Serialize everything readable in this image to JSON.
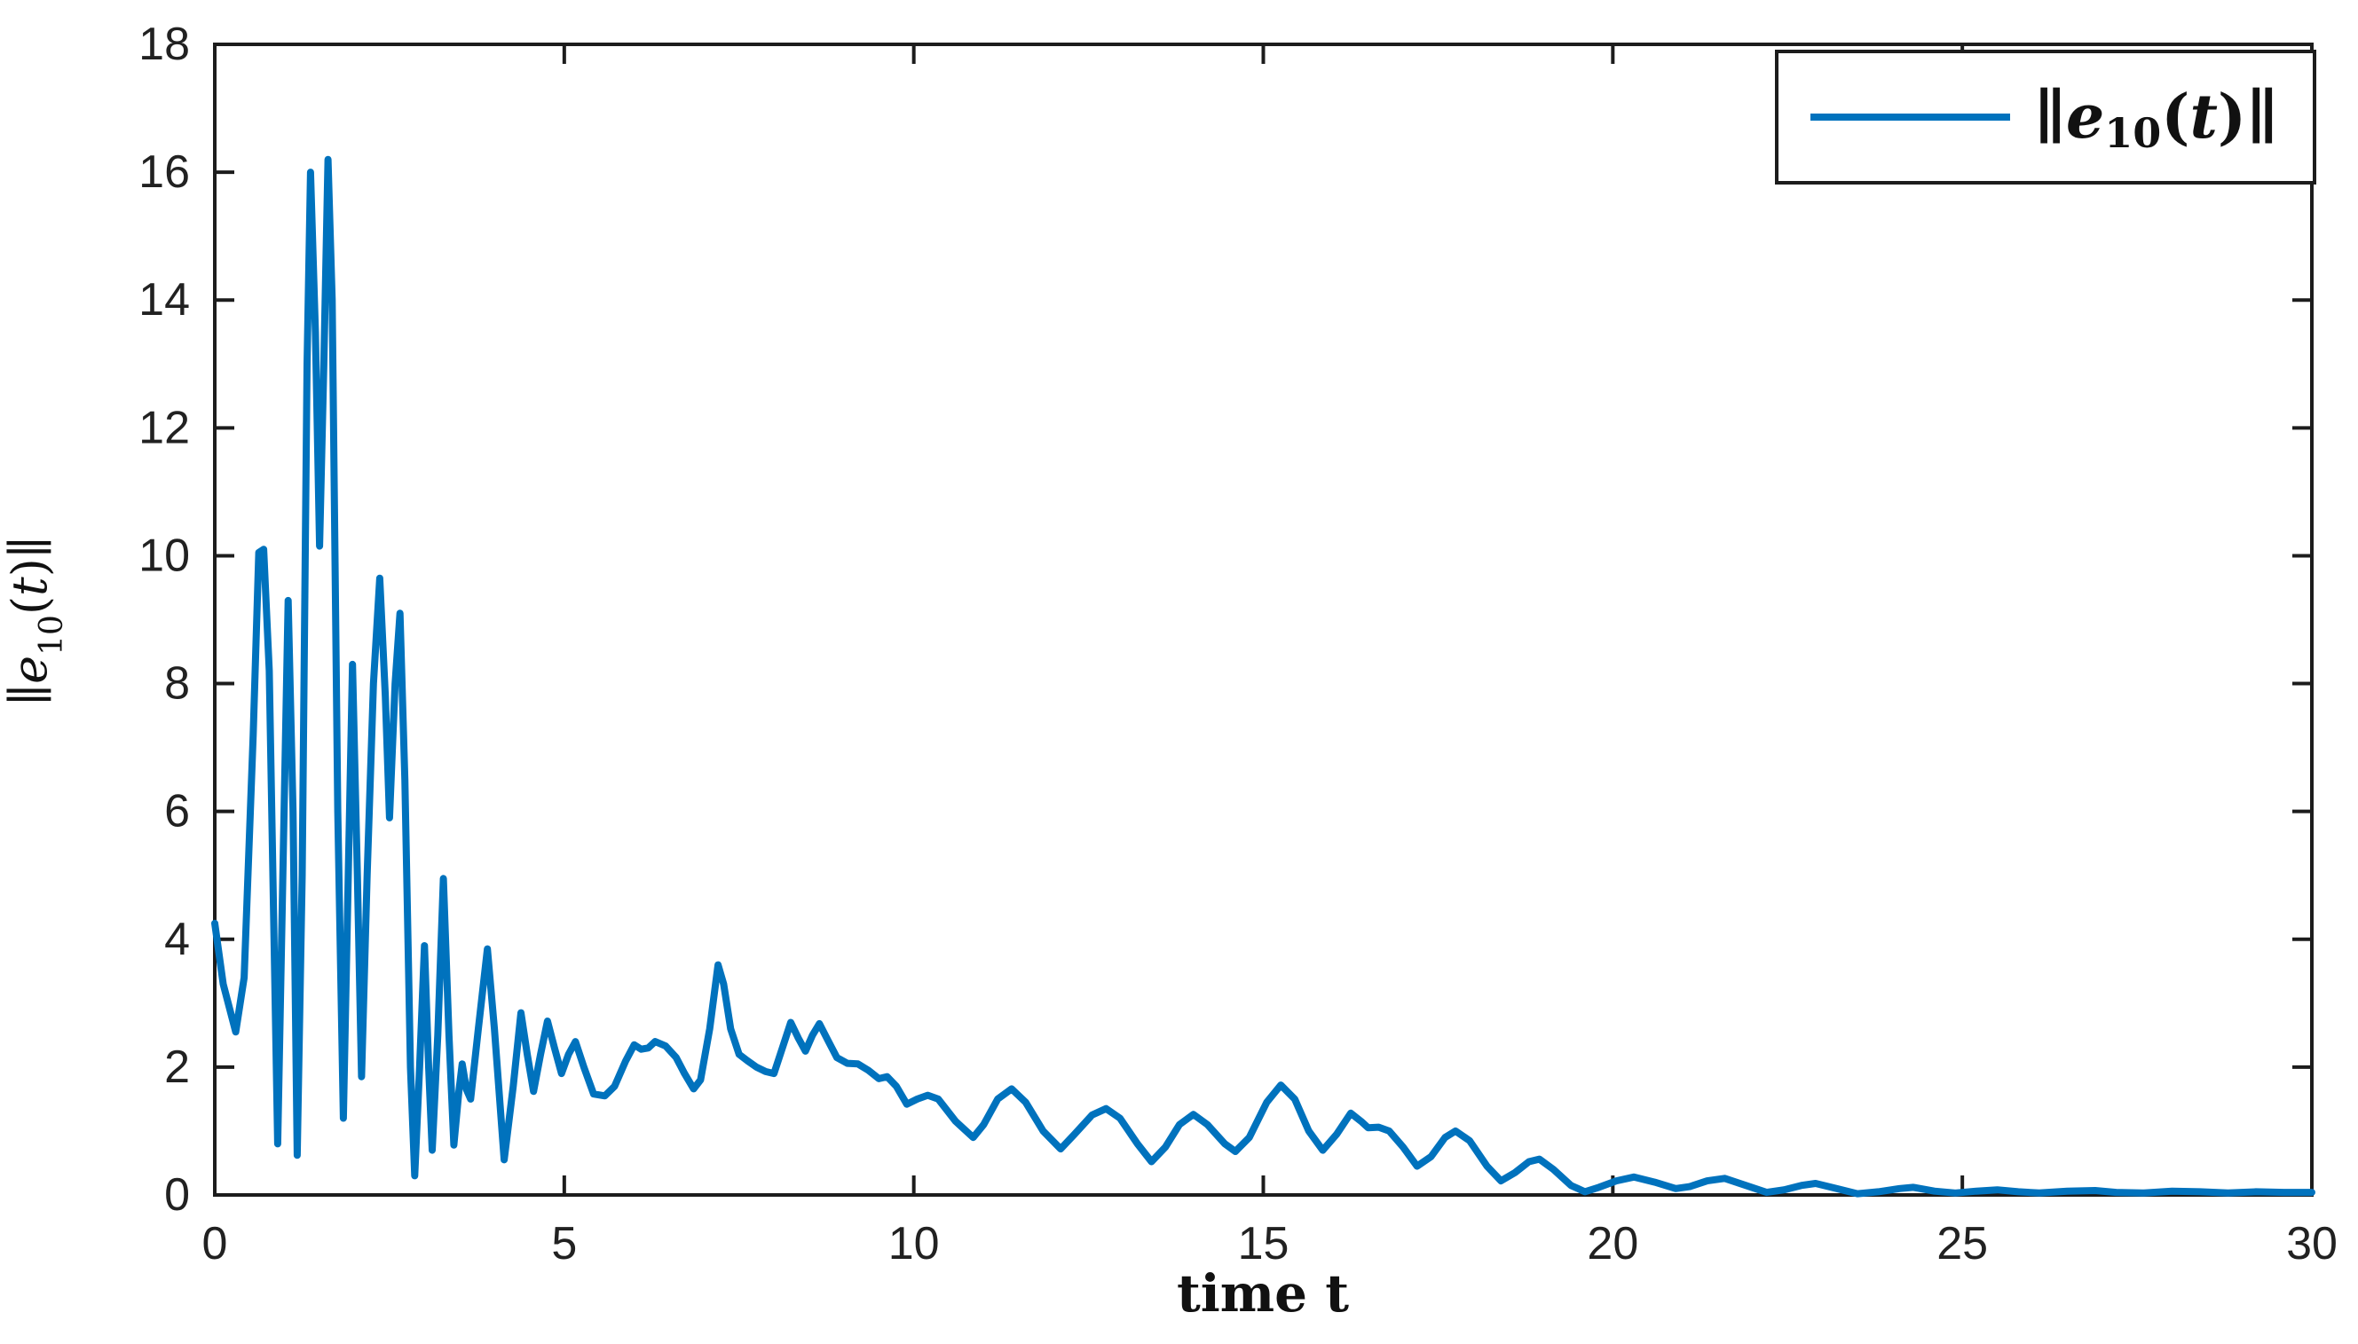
{
  "figure": {
    "background": "#ffffff"
  },
  "chart_data": {
    "type": "line",
    "title": "",
    "xlabel": "time t",
    "ylabel": "||e10(t)||",
    "ylabel_parts": {
      "open": "∥",
      "var": "e",
      "sub": "10",
      "arg_open": "(",
      "arg_var": "t",
      "arg_close": ")",
      "close": "∥"
    },
    "xlim": [
      0,
      30
    ],
    "ylim": [
      0,
      18
    ],
    "xticks": [
      0,
      5,
      10,
      15,
      20,
      25,
      30
    ],
    "yticks": [
      0,
      2,
      4,
      6,
      8,
      10,
      12,
      14,
      16,
      18
    ],
    "grid": false,
    "legend": {
      "position": "top-right",
      "entries": [
        {
          "label": "||e10(t)||",
          "label_parts": {
            "open": "∥",
            "var": "e",
            "sub": "10",
            "arg_open": "(",
            "arg_var": "t",
            "arg_close": ")",
            "close": "∥"
          },
          "color": "#0072BD"
        }
      ]
    },
    "axis_color": "#1c1c1c",
    "line_color": "#0072BD",
    "line_width": 8,
    "series": [
      {
        "name": "||e10(t)||",
        "points": [
          [
            0,
            4.25
          ],
          [
            0.12,
            3.3
          ],
          [
            0.3,
            2.55
          ],
          [
            0.42,
            3.4
          ],
          [
            0.55,
            7.2
          ],
          [
            0.63,
            10.05
          ],
          [
            0.7,
            10.1
          ],
          [
            0.78,
            8.2
          ],
          [
            0.9,
            0.8
          ],
          [
            1.0,
            6.5
          ],
          [
            1.05,
            9.3
          ],
          [
            1.12,
            6.0
          ],
          [
            1.18,
            0.62
          ],
          [
            1.25,
            5.0
          ],
          [
            1.32,
            13.0
          ],
          [
            1.37,
            16.0
          ],
          [
            1.44,
            13.5
          ],
          [
            1.5,
            10.15
          ],
          [
            1.56,
            13.0
          ],
          [
            1.62,
            16.2
          ],
          [
            1.68,
            14.0
          ],
          [
            1.76,
            6.0
          ],
          [
            1.84,
            1.2
          ],
          [
            1.9,
            4.5
          ],
          [
            1.97,
            8.3
          ],
          [
            2.04,
            5.0
          ],
          [
            2.1,
            1.85
          ],
          [
            2.18,
            5.0
          ],
          [
            2.27,
            8.0
          ],
          [
            2.36,
            9.65
          ],
          [
            2.44,
            7.8
          ],
          [
            2.5,
            5.9
          ],
          [
            2.58,
            8.0
          ],
          [
            2.65,
            9.1
          ],
          [
            2.72,
            6.5
          ],
          [
            2.8,
            2.0
          ],
          [
            2.86,
            0.3
          ],
          [
            2.93,
            2.0
          ],
          [
            3.0,
            3.9
          ],
          [
            3.06,
            2.0
          ],
          [
            3.11,
            0.7
          ],
          [
            3.19,
            2.5
          ],
          [
            3.27,
            4.95
          ],
          [
            3.35,
            2.5
          ],
          [
            3.42,
            0.78
          ],
          [
            3.49,
            1.6
          ],
          [
            3.54,
            2.05
          ],
          [
            3.6,
            1.65
          ],
          [
            3.66,
            1.5
          ],
          [
            3.77,
            2.6
          ],
          [
            3.9,
            3.85
          ],
          [
            4.0,
            2.6
          ],
          [
            4.14,
            0.55
          ],
          [
            4.27,
            1.7
          ],
          [
            4.38,
            2.85
          ],
          [
            4.47,
            2.2
          ],
          [
            4.56,
            1.62
          ],
          [
            4.66,
            2.2
          ],
          [
            4.76,
            2.72
          ],
          [
            4.86,
            2.3
          ],
          [
            4.96,
            1.9
          ],
          [
            5.06,
            2.2
          ],
          [
            5.16,
            2.4
          ],
          [
            5.28,
            2.0
          ],
          [
            5.42,
            1.58
          ],
          [
            5.58,
            1.55
          ],
          [
            5.72,
            1.7
          ],
          [
            5.88,
            2.1
          ],
          [
            6.0,
            2.35
          ],
          [
            6.1,
            2.28
          ],
          [
            6.2,
            2.3
          ],
          [
            6.3,
            2.4
          ],
          [
            6.45,
            2.33
          ],
          [
            6.6,
            2.15
          ],
          [
            6.72,
            1.9
          ],
          [
            6.85,
            1.66
          ],
          [
            6.95,
            1.8
          ],
          [
            7.08,
            2.6
          ],
          [
            7.2,
            3.6
          ],
          [
            7.28,
            3.3
          ],
          [
            7.38,
            2.6
          ],
          [
            7.5,
            2.2
          ],
          [
            7.62,
            2.1
          ],
          [
            7.75,
            2.0
          ],
          [
            7.88,
            1.93
          ],
          [
            8.0,
            1.9
          ],
          [
            8.12,
            2.3
          ],
          [
            8.24,
            2.7
          ],
          [
            8.35,
            2.45
          ],
          [
            8.45,
            2.25
          ],
          [
            8.55,
            2.5
          ],
          [
            8.65,
            2.68
          ],
          [
            8.78,
            2.4
          ],
          [
            8.9,
            2.15
          ],
          [
            9.05,
            2.06
          ],
          [
            9.2,
            2.05
          ],
          [
            9.35,
            1.95
          ],
          [
            9.5,
            1.82
          ],
          [
            9.62,
            1.85
          ],
          [
            9.75,
            1.7
          ],
          [
            9.9,
            1.42
          ],
          [
            10.05,
            1.5
          ],
          [
            10.2,
            1.56
          ],
          [
            10.35,
            1.5
          ],
          [
            10.6,
            1.15
          ],
          [
            10.85,
            0.9
          ],
          [
            11.0,
            1.1
          ],
          [
            11.2,
            1.5
          ],
          [
            11.4,
            1.66
          ],
          [
            11.6,
            1.45
          ],
          [
            11.85,
            1.0
          ],
          [
            12.1,
            0.72
          ],
          [
            12.3,
            0.95
          ],
          [
            12.55,
            1.25
          ],
          [
            12.75,
            1.35
          ],
          [
            12.95,
            1.2
          ],
          [
            13.2,
            0.8
          ],
          [
            13.4,
            0.52
          ],
          [
            13.6,
            0.75
          ],
          [
            13.8,
            1.1
          ],
          [
            14.0,
            1.26
          ],
          [
            14.2,
            1.1
          ],
          [
            14.45,
            0.8
          ],
          [
            14.6,
            0.68
          ],
          [
            14.8,
            0.9
          ],
          [
            15.05,
            1.45
          ],
          [
            15.25,
            1.72
          ],
          [
            15.45,
            1.5
          ],
          [
            15.65,
            1.0
          ],
          [
            15.85,
            0.7
          ],
          [
            16.05,
            0.95
          ],
          [
            16.25,
            1.28
          ],
          [
            16.4,
            1.15
          ],
          [
            16.5,
            1.05
          ],
          [
            16.65,
            1.06
          ],
          [
            16.8,
            1.0
          ],
          [
            17.0,
            0.75
          ],
          [
            17.2,
            0.45
          ],
          [
            17.4,
            0.6
          ],
          [
            17.6,
            0.9
          ],
          [
            17.75,
            1.0
          ],
          [
            17.95,
            0.85
          ],
          [
            18.2,
            0.45
          ],
          [
            18.4,
            0.22
          ],
          [
            18.6,
            0.35
          ],
          [
            18.8,
            0.52
          ],
          [
            18.95,
            0.56
          ],
          [
            19.15,
            0.4
          ],
          [
            19.4,
            0.15
          ],
          [
            19.6,
            0.05
          ],
          [
            19.8,
            0.12
          ],
          [
            20.05,
            0.22
          ],
          [
            20.3,
            0.28
          ],
          [
            20.6,
            0.2
          ],
          [
            20.9,
            0.1
          ],
          [
            21.1,
            0.13
          ],
          [
            21.35,
            0.22
          ],
          [
            21.6,
            0.26
          ],
          [
            21.9,
            0.15
          ],
          [
            22.2,
            0.04
          ],
          [
            22.45,
            0.08
          ],
          [
            22.7,
            0.15
          ],
          [
            22.9,
            0.18
          ],
          [
            23.2,
            0.1
          ],
          [
            23.5,
            0.02
          ],
          [
            23.8,
            0.05
          ],
          [
            24.1,
            0.1
          ],
          [
            24.3,
            0.12
          ],
          [
            24.6,
            0.06
          ],
          [
            24.9,
            0.03
          ],
          [
            25.2,
            0.06
          ],
          [
            25.5,
            0.08
          ],
          [
            25.8,
            0.05
          ],
          [
            26.1,
            0.03
          ],
          [
            26.5,
            0.06
          ],
          [
            26.9,
            0.07
          ],
          [
            27.2,
            0.04
          ],
          [
            27.6,
            0.03
          ],
          [
            28.0,
            0.06
          ],
          [
            28.4,
            0.05
          ],
          [
            28.8,
            0.03
          ],
          [
            29.2,
            0.05
          ],
          [
            29.6,
            0.04
          ],
          [
            30,
            0.04
          ]
        ]
      }
    ]
  }
}
